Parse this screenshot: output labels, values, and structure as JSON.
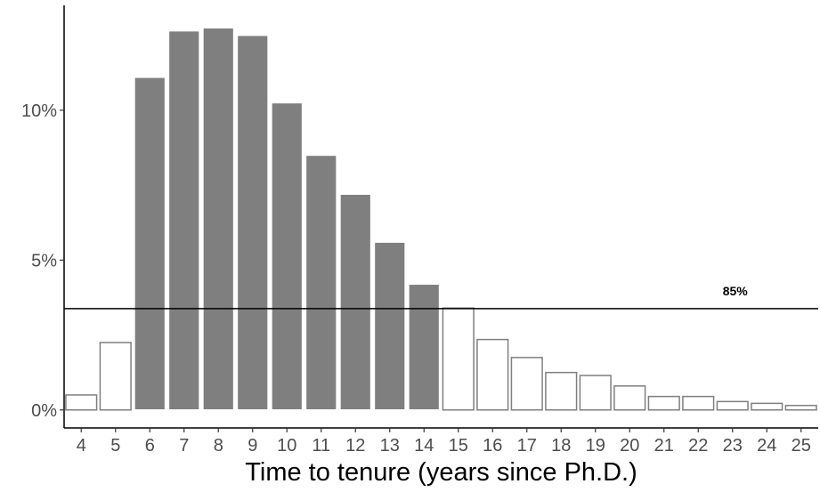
{
  "chart_data": {
    "type": "bar",
    "title": "",
    "xlabel": "Time to tenure (years since Ph.D.)",
    "ylabel": "",
    "categories": [
      "4",
      "5",
      "6",
      "7",
      "8",
      "9",
      "10",
      "11",
      "12",
      "13",
      "14",
      "15",
      "16",
      "17",
      "18",
      "19",
      "20",
      "21",
      "22",
      "23",
      "24",
      "25"
    ],
    "values": [
      0.5,
      2.25,
      11.1,
      12.65,
      12.75,
      12.5,
      10.25,
      8.5,
      7.2,
      5.6,
      4.2,
      3.4,
      2.35,
      1.75,
      1.25,
      1.15,
      0.8,
      0.45,
      0.45,
      0.28,
      0.22,
      0.15
    ],
    "highlighted": [
      false,
      false,
      true,
      true,
      true,
      true,
      true,
      true,
      true,
      true,
      true,
      false,
      false,
      false,
      false,
      false,
      false,
      false,
      false,
      false,
      false,
      false
    ],
    "ylim": [
      -0.6,
      13.5
    ],
    "yticks": [
      {
        "value": 0,
        "label": "0%"
      },
      {
        "value": 5,
        "label": "5%"
      },
      {
        "value": 10,
        "label": "10%"
      }
    ],
    "reference_line": {
      "value": 3.38,
      "label": "85%"
    },
    "grid": false,
    "legend": "none",
    "colors": {
      "highlight_fill": "#7f7f7f",
      "highlight_stroke": "#ffffff",
      "plain_fill": "#ffffff",
      "plain_stroke": "#7f7f7f",
      "reference_line": "#000000"
    }
  }
}
